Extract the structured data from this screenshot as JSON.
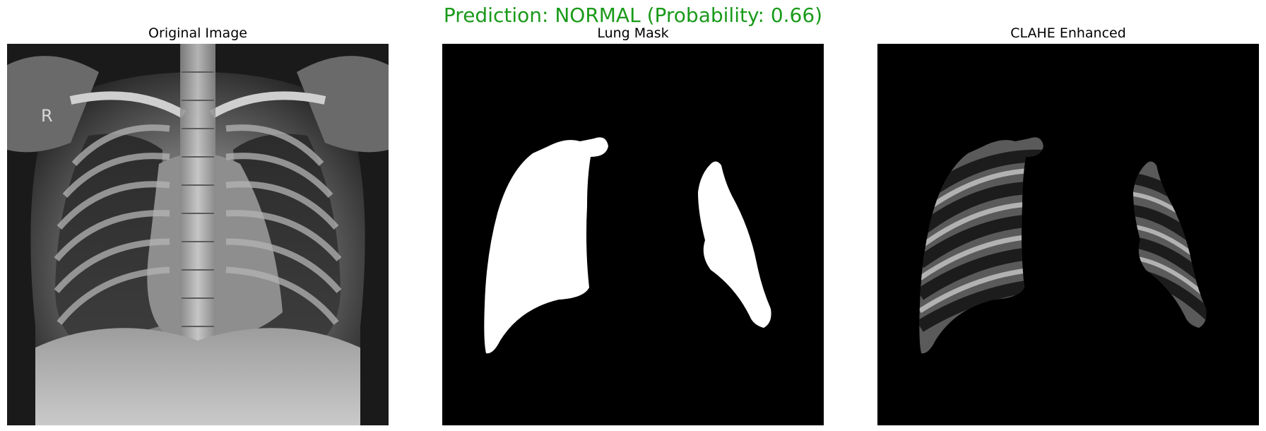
{
  "figure": {
    "suptitle": "Prediction: NORMAL (Probability: 0.66)",
    "suptitle_color": "#1a9a1a"
  },
  "panels": [
    {
      "title": "Original Image",
      "image": "chest-xray-original"
    },
    {
      "title": "Lung Mask",
      "image": "binary-lung-mask"
    },
    {
      "title": "CLAHE Enhanced",
      "image": "clahe-enhanced-lungs"
    }
  ],
  "xray": {
    "marker": "R"
  },
  "colors": {
    "background": "#ffffff",
    "mask_fill": "#ffffff",
    "mask_background": "#000000"
  }
}
